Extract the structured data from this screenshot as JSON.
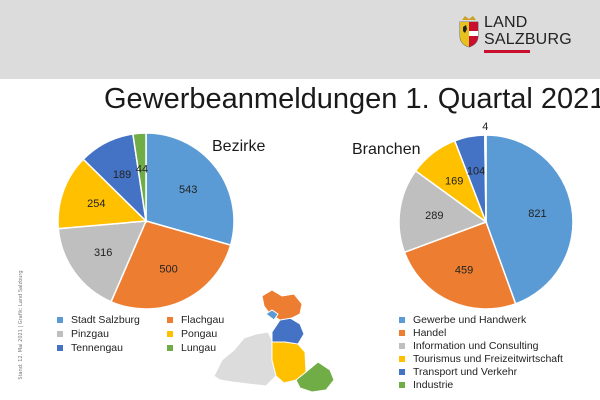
{
  "header": {
    "logo_line1": "LAND",
    "logo_line2": "SALZBURG"
  },
  "sidenote": "Stand: 12. Mai 2021 | Grafik: Land Salzburg",
  "colors": {
    "blue": "#5b9bd5",
    "orange": "#ed7d31",
    "gray": "#bfbfbf",
    "yellow": "#ffc000",
    "darkblue": "#4472c4",
    "green": "#70ad47"
  },
  "chart_data": [
    {
      "type": "pie",
      "title": "Gewerbeanmeldungen 1. Quartal 2021",
      "subtitle": "Bezirke",
      "categories": [
        "Stadt Salzburg",
        "Flachgau",
        "Pinzgau",
        "Pongau",
        "Tennengau",
        "Lungau"
      ],
      "values": [
        543,
        500,
        316,
        254,
        189,
        44
      ],
      "colors": [
        "#5b9bd5",
        "#ed7d31",
        "#bfbfbf",
        "#ffc000",
        "#4472c4",
        "#70ad47"
      ],
      "legend_position": "bottom"
    },
    {
      "type": "pie",
      "subtitle": "Branchen",
      "categories": [
        "Gewerbe und Handwerk",
        "Handel",
        "Information und Consulting",
        "Tourismus und Freizeitwirtschaft",
        "Transport und Verkehr",
        "Industrie"
      ],
      "values": [
        821,
        459,
        289,
        169,
        104,
        4
      ],
      "colors": [
        "#5b9bd5",
        "#ed7d31",
        "#bfbfbf",
        "#ffc000",
        "#4472c4",
        "#70ad47"
      ],
      "legend_position": "bottom"
    }
  ]
}
